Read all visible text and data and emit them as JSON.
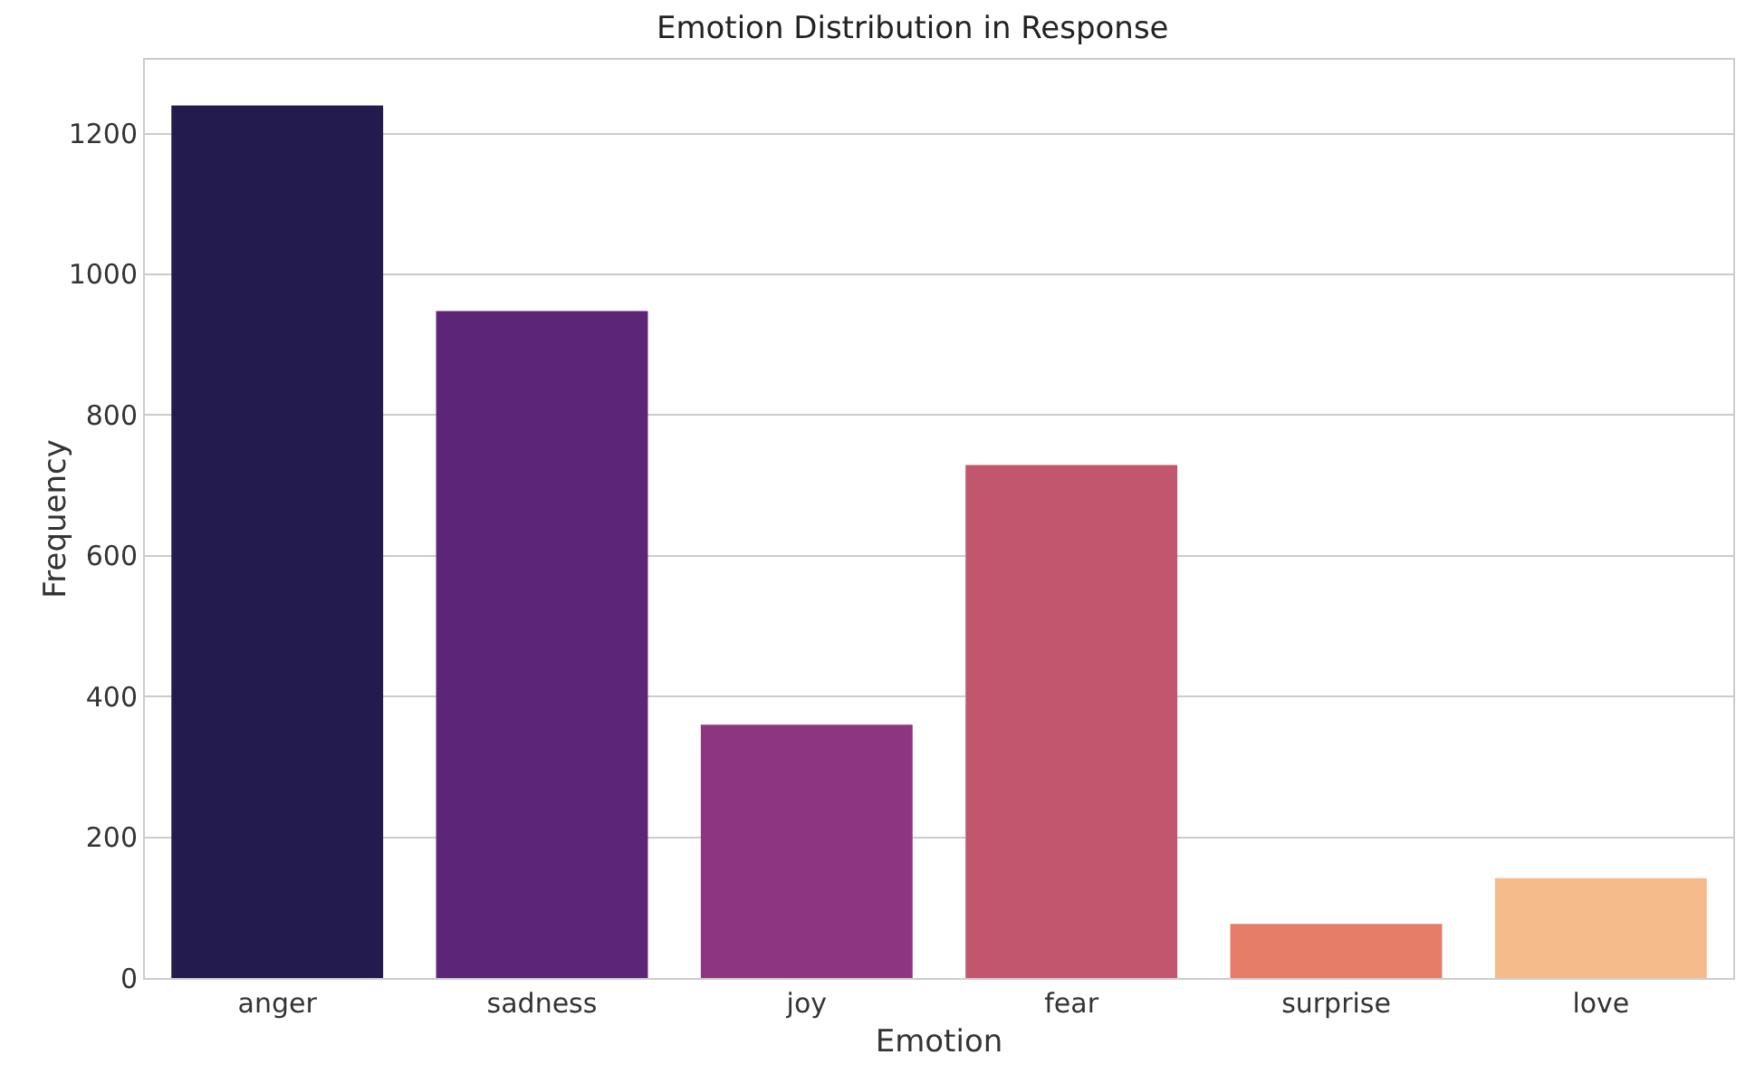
{
  "chart_data": {
    "type": "bar",
    "title": "Emotion Distribution in Response",
    "xlabel": "Emotion",
    "ylabel": "Frequency",
    "categories": [
      "anger",
      "sadness",
      "joy",
      "fear",
      "surprise",
      "love"
    ],
    "values": [
      1240,
      948,
      360,
      729,
      77,
      142
    ],
    "colors": [
      "#231a4e",
      "#5c2575",
      "#8e3580",
      "#c2566f",
      "#e57d69",
      "#f5bb8a"
    ],
    "ylim": [
      0,
      1305
    ],
    "yticks": [
      0,
      200,
      400,
      600,
      800,
      1000,
      1200
    ],
    "grid": "y"
  }
}
